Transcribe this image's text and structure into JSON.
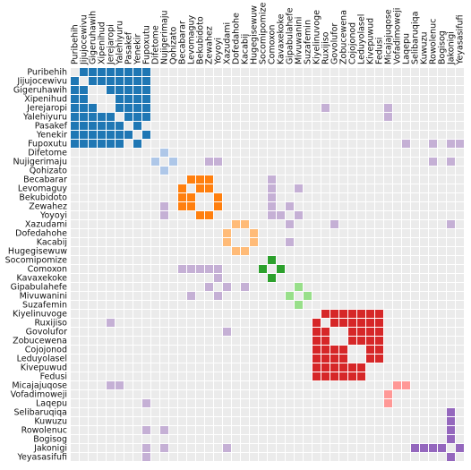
{
  "chart_data": {
    "type": "heatmap",
    "title": "",
    "labels": [
      "Puribehih",
      "Jijujocewivu",
      "Gigeruhawih",
      "Xipenihud",
      "Jerejaropi",
      "Yalehiyuru",
      "Pasakef",
      "Yenekir",
      "Fupoxutu",
      "Difetome",
      "Nujigerimaju",
      "Qohizato",
      "Becabarar",
      "Levomaguy",
      "Bekubidoto",
      "Zewahez",
      "Yoyoyi",
      "Xazudami",
      "Dofedahohe",
      "Kacabij",
      "Hugegisewuw",
      "Socomipomize",
      "Comoxon",
      "Kavaxekoke",
      "Gipabulahefe",
      "Mivuwanini",
      "Suzafemin",
      "Kiyelinuvoge",
      "Ruxijiso",
      "Govolufor",
      "Zobucewena",
      "Cojojonod",
      "Leduyolasel",
      "Kivepuwud",
      "Fedusi",
      "Micajajuqose",
      "Vofadimoweji",
      "Laqepu",
      "Selibaruqiqa",
      "Kuwuzu",
      "Rowolenuc",
      "Bogisog",
      "Jakonigi",
      "Yeyasasifufi"
    ],
    "groups": [
      {
        "members": [
          0,
          1,
          2,
          3,
          4,
          5,
          6,
          7,
          8
        ],
        "color": "#1f77b4"
      },
      {
        "members": [
          9,
          10,
          11
        ],
        "color": "#aec7e8"
      },
      {
        "members": [
          12,
          13,
          14,
          15,
          16
        ],
        "color": "#ff7f0e"
      },
      {
        "members": [
          17,
          18,
          19,
          20
        ],
        "color": "#ffbb78"
      },
      {
        "members": [
          21,
          22,
          23
        ],
        "color": "#2ca02c"
      },
      {
        "members": [
          24,
          25,
          26
        ],
        "color": "#98df8a"
      },
      {
        "members": [
          27,
          28,
          29,
          30,
          31,
          32,
          33,
          34
        ],
        "color": "#d62728"
      },
      {
        "members": [
          35,
          36,
          37
        ],
        "color": "#ff9896"
      },
      {
        "members": [
          38,
          39,
          40,
          41,
          42,
          43
        ],
        "color": "#9467bd"
      }
    ],
    "group_edges": [
      [
        0,
        1
      ],
      [
        0,
        2
      ],
      [
        0,
        3
      ],
      [
        0,
        4
      ],
      [
        0,
        5
      ],
      [
        0,
        6
      ],
      [
        0,
        7
      ],
      [
        0,
        8
      ],
      [
        1,
        2
      ],
      [
        1,
        3
      ],
      [
        1,
        4
      ],
      [
        1,
        5
      ],
      [
        1,
        6
      ],
      [
        1,
        7
      ],
      [
        1,
        8
      ],
      [
        2,
        4
      ],
      [
        2,
        5
      ],
      [
        2,
        6
      ],
      [
        2,
        7
      ],
      [
        2,
        8
      ],
      [
        3,
        5
      ],
      [
        3,
        6
      ],
      [
        3,
        7
      ],
      [
        3,
        8
      ],
      [
        4,
        5
      ],
      [
        4,
        6
      ],
      [
        4,
        7
      ],
      [
        4,
        8
      ],
      [
        5,
        6
      ],
      [
        5,
        7
      ],
      [
        5,
        8
      ],
      [
        6,
        7
      ],
      [
        7,
        8
      ],
      [
        9,
        10
      ],
      [
        10,
        11
      ],
      [
        12,
        13
      ],
      [
        12,
        14
      ],
      [
        12,
        15
      ],
      [
        13,
        14
      ],
      [
        13,
        15
      ],
      [
        14,
        16
      ],
      [
        15,
        16
      ],
      [
        17,
        18
      ],
      [
        17,
        19
      ],
      [
        18,
        20
      ],
      [
        19,
        20
      ],
      [
        21,
        22
      ],
      [
        22,
        23
      ],
      [
        24,
        25
      ],
      [
        25,
        26
      ],
      [
        27,
        28
      ],
      [
        27,
        29
      ],
      [
        27,
        30
      ],
      [
        27,
        31
      ],
      [
        27,
        32
      ],
      [
        27,
        33
      ],
      [
        27,
        34
      ],
      [
        28,
        29
      ],
      [
        28,
        30
      ],
      [
        28,
        31
      ],
      [
        28,
        32
      ],
      [
        28,
        33
      ],
      [
        28,
        34
      ],
      [
        29,
        31
      ],
      [
        29,
        32
      ],
      [
        29,
        33
      ],
      [
        29,
        34
      ],
      [
        30,
        31
      ],
      [
        30,
        32
      ],
      [
        30,
        33
      ],
      [
        30,
        34
      ],
      [
        31,
        33
      ],
      [
        31,
        34
      ],
      [
        32,
        33
      ],
      [
        32,
        34
      ],
      [
        35,
        36
      ],
      [
        35,
        37
      ],
      [
        38,
        42
      ],
      [
        39,
        42
      ],
      [
        40,
        42
      ],
      [
        41,
        42
      ],
      [
        42,
        43
      ]
    ],
    "cross_edges": [
      [
        4,
        28
      ],
      [
        4,
        35
      ],
      [
        8,
        37
      ],
      [
        8,
        40
      ],
      [
        8,
        42
      ],
      [
        10,
        15
      ],
      [
        10,
        16
      ],
      [
        15,
        22
      ],
      [
        15,
        24
      ],
      [
        16,
        22
      ],
      [
        16,
        23
      ],
      [
        16,
        25
      ],
      [
        17,
        29
      ],
      [
        19,
        24
      ],
      [
        12,
        22
      ],
      [
        13,
        22
      ],
      [
        14,
        22
      ],
      [
        17,
        24
      ],
      [
        28,
        4
      ],
      [
        29,
        17
      ],
      [
        35,
        5
      ],
      [
        37,
        8
      ],
      [
        40,
        10
      ],
      [
        42,
        8
      ],
      [
        42,
        10
      ],
      [
        42,
        17
      ],
      [
        43,
        8
      ],
      [
        22,
        12
      ],
      [
        22,
        15
      ],
      [
        22,
        16
      ],
      [
        24,
        15
      ],
      [
        24,
        17
      ],
      [
        24,
        19
      ],
      [
        25,
        16
      ],
      [
        25,
        13
      ]
    ],
    "cross_color": "#c5b0d5",
    "background_color": "#ebebeb",
    "grid": true
  }
}
